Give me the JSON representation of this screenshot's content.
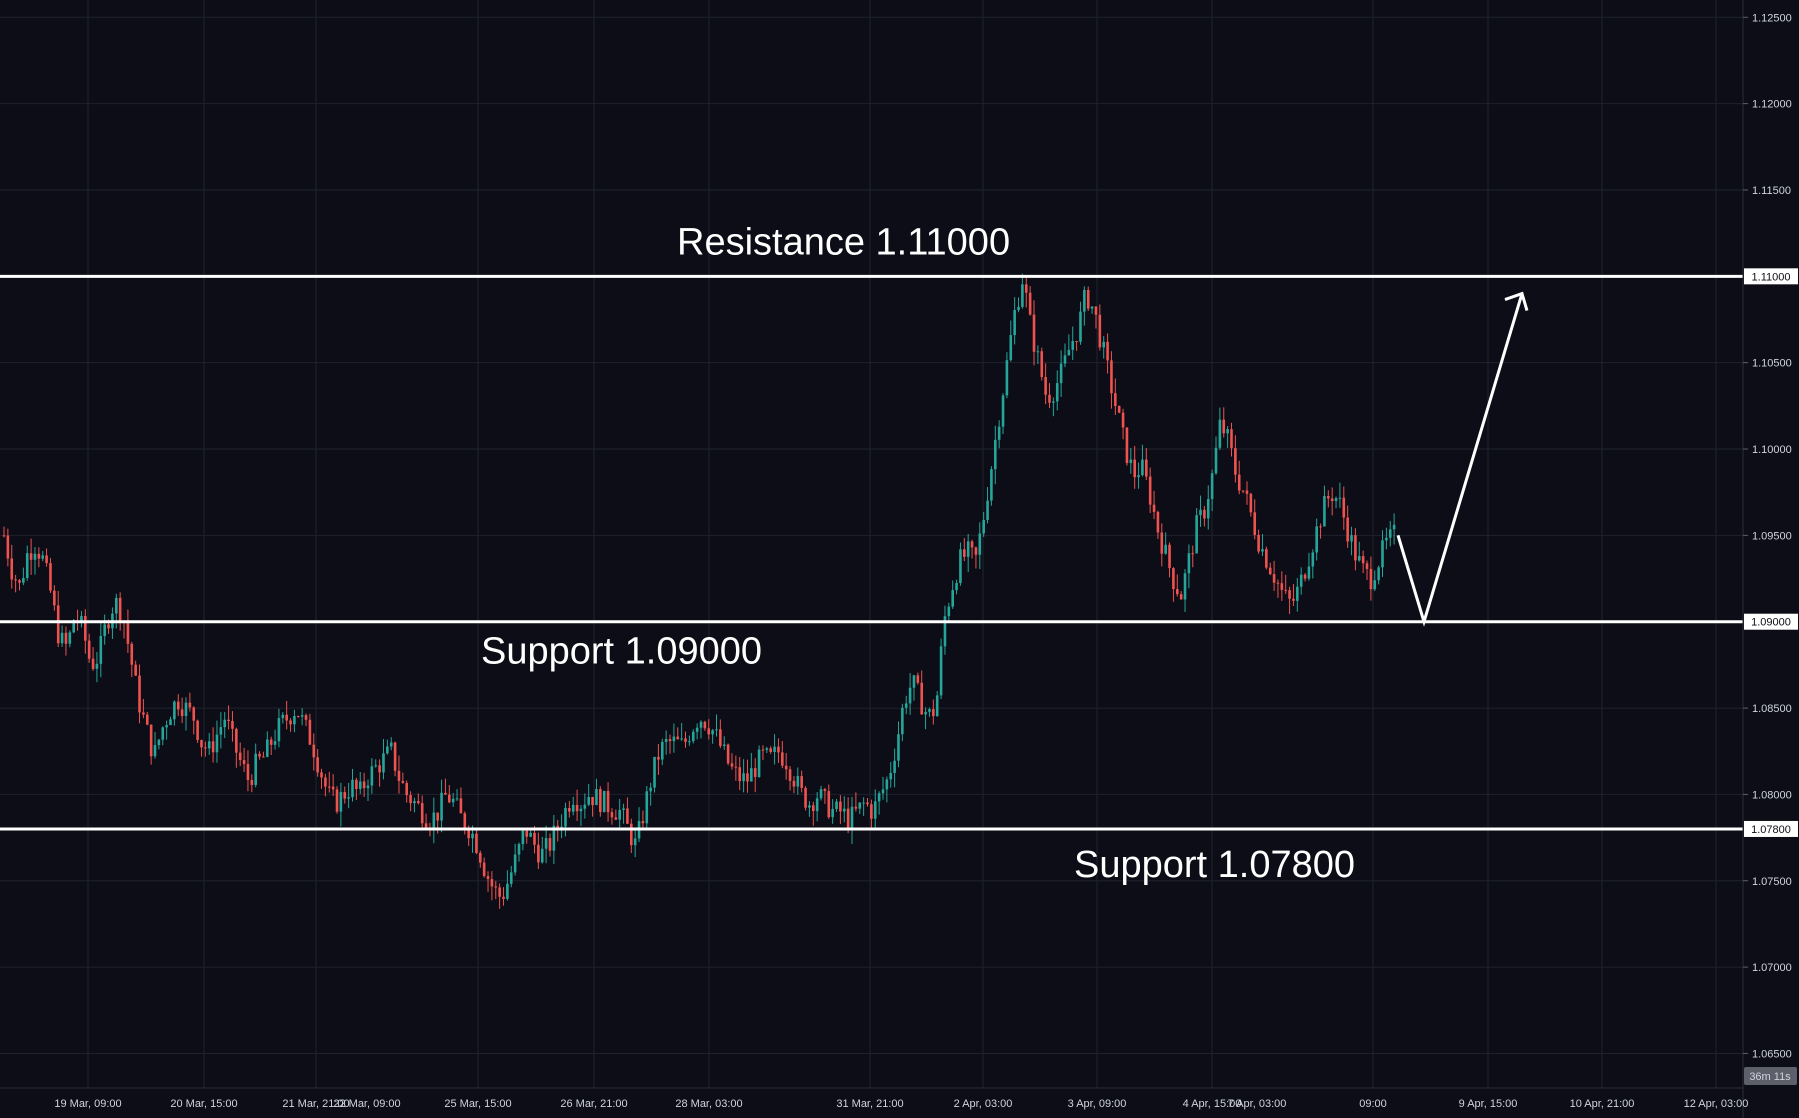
{
  "chart_data": {
    "type": "candlestick",
    "title": "",
    "xlabel": "",
    "ylabel": "",
    "ylim": [
      1.063,
      1.126
    ],
    "grid": true,
    "y_ticks": [
      "1.12500",
      "1.12000",
      "1.11500",
      "1.11000",
      "1.10500",
      "1.10000",
      "1.09500",
      "1.09000",
      "1.08500",
      "1.08000",
      "1.07800",
      "1.07500",
      "1.07000",
      "1.06500"
    ],
    "x_ticks": [
      "19 Mar, 09:00",
      "20 Mar, 15:00",
      "21 Mar, 21:00",
      "22 Mar, 09:00",
      "25 Mar, 15:00",
      "26 Mar, 21:00",
      "28 Mar, 03:00",
      "31 Mar, 21:00",
      "2 Apr, 03:00",
      "3 Apr, 09:00",
      "4 Apr, 15:00",
      "7 Apr, 03:00",
      "09:00",
      "9 Apr, 15:00",
      "10 Apr, 21:00",
      "12 Apr, 03:00"
    ],
    "levels": [
      {
        "label": "Resistance 1.11000",
        "value": 1.11,
        "tag": "1.11000"
      },
      {
        "label": "Support 1.09000",
        "value": 1.09,
        "tag": "1.09000"
      },
      {
        "label": "Support 1.07800",
        "value": 1.078,
        "tag": "1.07800"
      }
    ],
    "countdown": "36m 11s",
    "price_path": [
      1.095,
      1.093,
      1.092,
      1.094,
      1.0945,
      1.0935,
      1.0915,
      1.089,
      1.0885,
      1.0905,
      1.0895,
      1.0875,
      1.088,
      1.09,
      1.0912,
      1.0905,
      1.088,
      1.0855,
      1.0838,
      1.0822,
      1.0838,
      1.0848,
      1.0855,
      1.085,
      1.0845,
      1.083,
      1.0825,
      1.0835,
      1.0845,
      1.083,
      1.0818,
      1.0808,
      1.0818,
      1.0822,
      1.0832,
      1.084,
      1.0845,
      1.085,
      1.084,
      1.083,
      1.0815,
      1.08,
      1.0795,
      1.08,
      1.0805,
      1.08,
      1.081,
      1.0815,
      1.082,
      1.0825,
      1.081,
      1.08,
      1.0795,
      1.079,
      1.0785,
      1.079,
      1.08,
      1.0795,
      1.0785,
      1.078,
      1.077,
      1.0755,
      1.0745,
      1.074,
      1.0752,
      1.0765,
      1.078,
      1.0772,
      1.0765,
      1.077,
      1.078,
      1.079,
      1.08,
      1.0795,
      1.08,
      1.0798,
      1.0795,
      1.0792,
      1.079,
      1.078,
      1.077,
      1.079,
      1.081,
      1.0825,
      1.083,
      1.083,
      1.0828,
      1.0838,
      1.0845,
      1.0842,
      1.0835,
      1.0825,
      1.0815,
      1.081,
      1.0808,
      1.0815,
      1.0822,
      1.082,
      1.0825,
      1.082,
      1.081,
      1.08,
      1.0795,
      1.08,
      1.0795,
      1.079,
      1.079,
      1.0785,
      1.079,
      1.0795,
      1.079,
      1.08,
      1.081,
      1.083,
      1.0855,
      1.0865,
      1.0855,
      1.0845,
      1.085,
      1.09,
      1.092,
      1.0935,
      1.094,
      1.0935,
      1.096,
      1.099,
      1.102,
      1.105,
      1.108,
      1.11,
      1.107,
      1.105,
      1.103,
      1.1035,
      1.1045,
      1.106,
      1.107,
      1.109,
      1.108,
      1.106,
      1.104,
      1.102,
      1.1,
      1.0985,
      1.099,
      1.0975,
      1.0955,
      1.094,
      1.0925,
      1.0915,
      1.0935,
      1.0955,
      1.0965,
      1.0985,
      1.1015,
      1.1005,
      1.0985,
      1.0975,
      1.096,
      1.0945,
      1.0935,
      1.0925,
      1.0915,
      1.091,
      1.092,
      1.0935,
      1.095,
      1.0965,
      1.0975,
      1.097,
      1.0955,
      1.094,
      1.093,
      1.0925,
      1.0935,
      1.0945,
      1.095
    ]
  }
}
